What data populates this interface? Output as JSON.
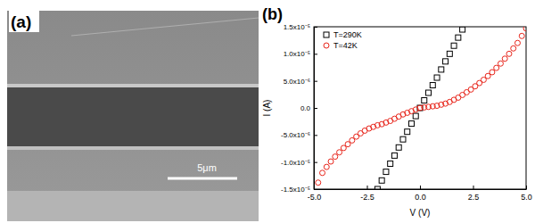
{
  "chart_data": {
    "type": "scatter",
    "title": "(b)",
    "x_label": "V (V)",
    "y_label": "I (A)",
    "xlim": [
      -5,
      5
    ],
    "xticks": [
      {
        "value": -5,
        "label": "-5.0"
      },
      {
        "value": -2.5,
        "label": "-2.5"
      },
      {
        "value": 0,
        "label": "0.0"
      },
      {
        "value": 2.5,
        "label": "2.5"
      },
      {
        "value": 5,
        "label": "5.0"
      }
    ],
    "ylim": [
      -1.5e-05,
      1.5e-05
    ],
    "yticks": [
      {
        "value": -1.5e-05,
        "label": "-1.5x10⁻⁵"
      },
      {
        "value": -1e-05,
        "label": "-1.0x10⁻⁵"
      },
      {
        "value": -5e-06,
        "label": "-5.0x10⁻⁶"
      },
      {
        "value": 0,
        "label": "0.0"
      },
      {
        "value": 5e-06,
        "label": "5.0x10⁻⁶"
      },
      {
        "value": 1e-05,
        "label": "1.0x10⁻⁵"
      },
      {
        "value": 1.5e-05,
        "label": "1.5x10⁻⁵"
      }
    ],
    "grid": false,
    "legend": "upper left",
    "series": [
      {
        "name": "T=290K",
        "color": "#000000",
        "marker": "square",
        "x": [
          -2.0,
          -1.8,
          -1.6,
          -1.4,
          -1.2,
          -1.0,
          -0.8,
          -0.6,
          -0.4,
          -0.2,
          0.0,
          0.2,
          0.4,
          0.6,
          0.8,
          1.0,
          1.2,
          1.4,
          1.6,
          1.8,
          2.0
        ],
        "values": [
          -1.5e-05,
          -1.34e-05,
          -1.18e-05,
          -1.03e-05,
          -8.8e-06,
          -7.3e-06,
          -5.8e-06,
          -4.4e-06,
          -2.9e-06,
          -1.5e-06,
          0.0,
          1.4e-06,
          2.8e-06,
          4.2e-06,
          5.6e-06,
          7.1e-06,
          8.6e-06,
          1e-05,
          1.15e-05,
          1.3e-05,
          1.45e-05
        ]
      },
      {
        "name": "T=42K",
        "color": "#e8261c",
        "marker": "circle",
        "x": [
          -4.8,
          -4.6,
          -4.4,
          -4.2,
          -4.0,
          -3.8,
          -3.6,
          -3.4,
          -3.2,
          -3.0,
          -2.8,
          -2.6,
          -2.4,
          -2.2,
          -2.0,
          -1.8,
          -1.6,
          -1.4,
          -1.2,
          -1.0,
          -0.8,
          -0.6,
          -0.4,
          -0.2,
          0.0,
          0.2,
          0.4,
          0.6,
          0.8,
          1.0,
          1.2,
          1.4,
          1.6,
          1.8,
          2.0,
          2.2,
          2.4,
          2.6,
          2.8,
          3.0,
          3.2,
          3.4,
          3.6,
          3.8,
          4.0,
          4.2,
          4.4,
          4.6,
          4.8,
          5.0
        ],
        "values": [
          -1.38e-05,
          -1.2e-05,
          -1.09e-05,
          -9.9e-06,
          -9e-06,
          -8.2e-06,
          -7.4e-06,
          -6.7e-06,
          -6e-06,
          -5.3e-06,
          -4.7e-06,
          -4.2e-06,
          -3.8e-06,
          -3.5e-06,
          -3.2e-06,
          -3e-06,
          -2.7e-06,
          -2.4e-06,
          -2e-06,
          -1.6e-06,
          -1.2e-06,
          -9e-07,
          -6e-07,
          -3e-07,
          0.0,
          1e-07,
          2e-07,
          3e-07,
          4e-07,
          6e-07,
          8e-07,
          1.1e-06,
          1.5e-06,
          1.9e-06,
          2.4e-06,
          2.9e-06,
          3.4e-06,
          4e-06,
          4.6e-06,
          5.2e-06,
          5.9e-06,
          6.6e-06,
          7.4e-06,
          8.2e-06,
          9.1e-06,
          1e-05,
          1.1e-05,
          1.2e-05,
          1.33e-05,
          1.47e-05
        ]
      }
    ]
  },
  "image_panel": {
    "label": "(a)",
    "scale_bar_label": "5μm"
  }
}
